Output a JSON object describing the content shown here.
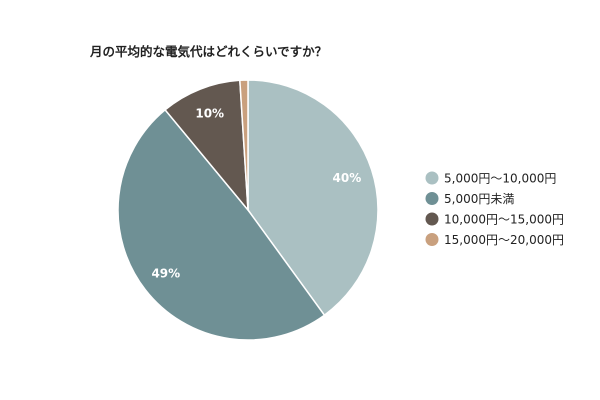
{
  "chart_data": {
    "type": "pie",
    "title": "月の平均的な電気代はどれくらいですか？",
    "slices": [
      {
        "name": "5,000円～10,000円",
        "value": 40,
        "label": "40%",
        "color": "#aac0c2"
      },
      {
        "name": "5,000円未満",
        "value": 49,
        "label": "49%",
        "color": "#6f9095"
      },
      {
        "name": "10,000円～15,000円",
        "value": 10,
        "label": "10%",
        "color": "#635850"
      },
      {
        "name": "15,000円～20,000円",
        "value": 1,
        "label": "",
        "color": "#c9a07e"
      }
    ],
    "legend_position": "right"
  }
}
